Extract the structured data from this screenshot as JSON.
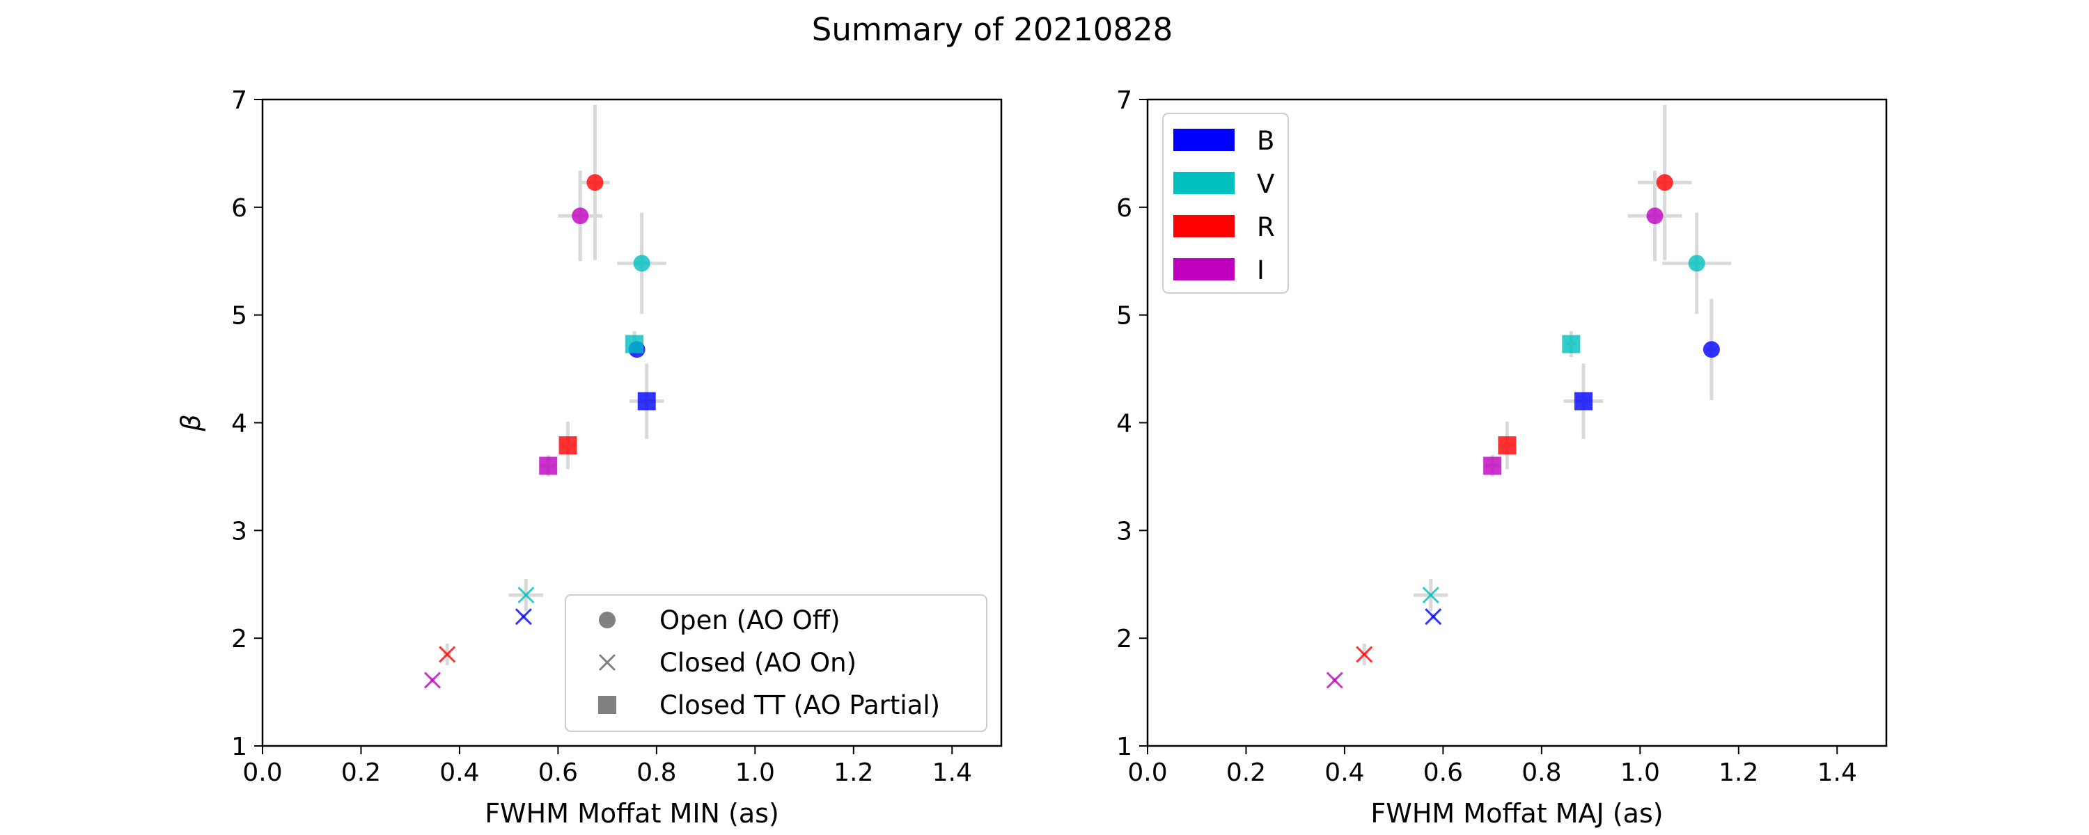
{
  "figure": {
    "title": "Summary of 20210828"
  },
  "chart_data": [
    {
      "type": "scatter",
      "xlabel": "FWHM Moffat MIN (as)",
      "ylabel": "β",
      "xlim": [
        0.0,
        1.5
      ],
      "ylim": [
        1,
        7
      ],
      "xticks": [
        "0.0",
        "0.2",
        "0.4",
        "0.6",
        "0.8",
        "1.0",
        "1.2",
        "1.4"
      ],
      "yticks": [
        "1",
        "2",
        "3",
        "4",
        "5",
        "6",
        "7"
      ],
      "grid": false,
      "legend": {
        "placement": "lower-right",
        "entries": [
          {
            "label": "Open (AO Off)",
            "marker": "circle"
          },
          {
            "label": "Closed (AO On)",
            "marker": "x"
          },
          {
            "label": "Closed TT (AO Partial)",
            "marker": "square"
          }
        ]
      },
      "points": [
        {
          "filter": "B",
          "mode": "Open (AO Off)",
          "marker": "circle",
          "x": 0.76,
          "y": 4.68,
          "xerr": 0.01,
          "yerr": 0.02
        },
        {
          "filter": "V",
          "mode": "Open (AO Off)",
          "marker": "circle",
          "x": 0.77,
          "y": 5.48,
          "xerr": 0.05,
          "yerr": 0.47
        },
        {
          "filter": "R",
          "mode": "Open (AO Off)",
          "marker": "circle",
          "x": 0.675,
          "y": 6.23,
          "xerr": 0.03,
          "yerr": 0.72
        },
        {
          "filter": "I",
          "mode": "Open (AO Off)",
          "marker": "circle",
          "x": 0.645,
          "y": 5.92,
          "xerr": 0.045,
          "yerr": 0.42
        },
        {
          "filter": "B",
          "mode": "Closed (AO On)",
          "marker": "x",
          "x": 0.53,
          "y": 2.2,
          "xerr": 0.005,
          "yerr": 0.03
        },
        {
          "filter": "V",
          "mode": "Closed (AO On)",
          "marker": "x",
          "x": 0.535,
          "y": 2.4,
          "xerr": 0.035,
          "yerr": 0.15
        },
        {
          "filter": "R",
          "mode": "Closed (AO On)",
          "marker": "x",
          "x": 0.375,
          "y": 1.85,
          "xerr": 0.008,
          "yerr": 0.1
        },
        {
          "filter": "I",
          "mode": "Closed (AO On)",
          "marker": "x",
          "x": 0.345,
          "y": 1.61,
          "xerr": 0.005,
          "yerr": 0.03
        },
        {
          "filter": "B",
          "mode": "Closed TT (AO Partial)",
          "marker": "square",
          "x": 0.78,
          "y": 4.2,
          "xerr": 0.035,
          "yerr": 0.35
        },
        {
          "filter": "V",
          "mode": "Closed TT (AO Partial)",
          "marker": "square",
          "x": 0.755,
          "y": 4.73,
          "xerr": 0.01,
          "yerr": 0.12
        },
        {
          "filter": "R",
          "mode": "Closed TT (AO Partial)",
          "marker": "square",
          "x": 0.62,
          "y": 3.79,
          "xerr": 0.015,
          "yerr": 0.22
        },
        {
          "filter": "I",
          "mode": "Closed TT (AO Partial)",
          "marker": "square",
          "x": 0.58,
          "y": 3.6,
          "xerr": 0.015,
          "yerr": 0.1
        }
      ]
    },
    {
      "type": "scatter",
      "xlabel": "FWHM Moffat MAJ (as)",
      "ylabel": "",
      "xlim": [
        0.0,
        1.5
      ],
      "ylim": [
        1,
        7
      ],
      "xticks": [
        "0.0",
        "0.2",
        "0.4",
        "0.6",
        "0.8",
        "1.0",
        "1.2",
        "1.4"
      ],
      "yticks": [
        "1",
        "2",
        "3",
        "4",
        "5",
        "6",
        "7"
      ],
      "grid": false,
      "legend": {
        "placement": "upper-left",
        "entries": [
          {
            "label": "B",
            "color": "#0000ff"
          },
          {
            "label": "V",
            "color": "#00bfbf"
          },
          {
            "label": "R",
            "color": "#ff0000"
          },
          {
            "label": "I",
            "color": "#bf00bf"
          }
        ]
      },
      "points": [
        {
          "filter": "B",
          "mode": "Open (AO Off)",
          "marker": "circle",
          "x": 1.145,
          "y": 4.68,
          "xerr": 0.01,
          "yerr": 0.47
        },
        {
          "filter": "V",
          "mode": "Open (AO Off)",
          "marker": "circle",
          "x": 1.115,
          "y": 5.48,
          "xerr": 0.07,
          "yerr": 0.47
        },
        {
          "filter": "R",
          "mode": "Open (AO Off)",
          "marker": "circle",
          "x": 1.05,
          "y": 6.23,
          "xerr": 0.055,
          "yerr": 0.72
        },
        {
          "filter": "I",
          "mode": "Open (AO Off)",
          "marker": "circle",
          "x": 1.03,
          "y": 5.92,
          "xerr": 0.055,
          "yerr": 0.42
        },
        {
          "filter": "B",
          "mode": "Closed (AO On)",
          "marker": "x",
          "x": 0.58,
          "y": 2.2,
          "xerr": 0.005,
          "yerr": 0.03
        },
        {
          "filter": "V",
          "mode": "Closed (AO On)",
          "marker": "x",
          "x": 0.575,
          "y": 2.4,
          "xerr": 0.035,
          "yerr": 0.15
        },
        {
          "filter": "R",
          "mode": "Closed (AO On)",
          "marker": "x",
          "x": 0.44,
          "y": 1.85,
          "xerr": 0.008,
          "yerr": 0.1
        },
        {
          "filter": "I",
          "mode": "Closed (AO On)",
          "marker": "x",
          "x": 0.38,
          "y": 1.61,
          "xerr": 0.005,
          "yerr": 0.03
        },
        {
          "filter": "B",
          "mode": "Closed TT (AO Partial)",
          "marker": "square",
          "x": 0.885,
          "y": 4.2,
          "xerr": 0.04,
          "yerr": 0.35
        },
        {
          "filter": "V",
          "mode": "Closed TT (AO Partial)",
          "marker": "square",
          "x": 0.86,
          "y": 4.73,
          "xerr": 0.01,
          "yerr": 0.12
        },
        {
          "filter": "R",
          "mode": "Closed TT (AO Partial)",
          "marker": "square",
          "x": 0.73,
          "y": 3.79,
          "xerr": 0.015,
          "yerr": 0.22
        },
        {
          "filter": "I",
          "mode": "Closed TT (AO Partial)",
          "marker": "square",
          "x": 0.7,
          "y": 3.6,
          "xerr": 0.015,
          "yerr": 0.1
        }
      ]
    }
  ],
  "filter_colors": {
    "B": "#0000ff",
    "V": "#00bfbf",
    "R": "#ff0000",
    "I": "#bf00bf"
  },
  "errorbar_color": "#d9d9d9",
  "legend_marker_color": "#808080"
}
